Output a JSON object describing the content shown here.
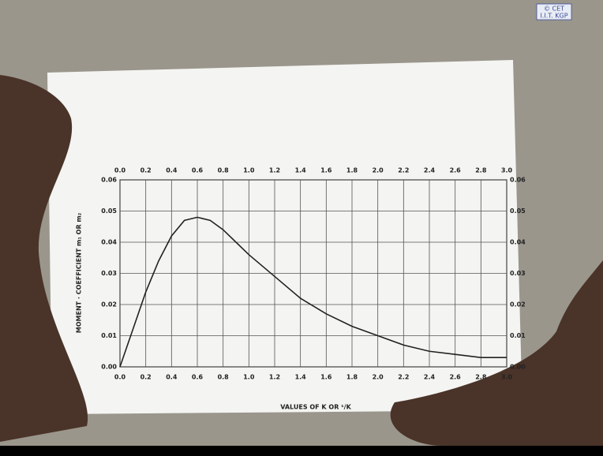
{
  "watermark": [
    "© CET",
    "I.I.T. KGP"
  ],
  "chart_data": {
    "type": "line",
    "xlabel": "VALUES OF K OR ¹/K",
    "ylabel": "MOMENT · COEFFICIENT m₁ OR m₂",
    "x": [
      0,
      0.1,
      0.2,
      0.3,
      0.4,
      0.5,
      0.6,
      0.7,
      0.8,
      0.9,
      1.0,
      1.2,
      1.4,
      1.6,
      1.8,
      2.0,
      2.2,
      2.4,
      2.6,
      2.8,
      3.0
    ],
    "series": [
      {
        "color": "#222222",
        "values": [
          0,
          0.012,
          0.024,
          0.034,
          0.042,
          0.047,
          0.048,
          0.047,
          0.044,
          0.04,
          0.036,
          0.029,
          0.022,
          0.017,
          0.013,
          0.01,
          0.007,
          0.005,
          0.004,
          0.003,
          0.003
        ]
      }
    ],
    "xlim": [
      0,
      3
    ],
    "ylim": [
      0,
      0.06
    ],
    "xticks": [
      {
        "value": 0,
        "label": "0.0"
      },
      0.2,
      0.4,
      0.6,
      0.8,
      {
        "value": 1,
        "label": "1.0"
      },
      1.2,
      1.4,
      1.6,
      1.8,
      {
        "value": 2,
        "label": "2.0"
      },
      2.2,
      2.4,
      2.6,
      2.8,
      {
        "value": 3,
        "label": "3.0"
      }
    ],
    "yticks": [
      {
        "value": 0,
        "label": "0.00"
      },
      0.01,
      0.02,
      0.03,
      0.04,
      0.05,
      0.06
    ],
    "grid": true
  }
}
